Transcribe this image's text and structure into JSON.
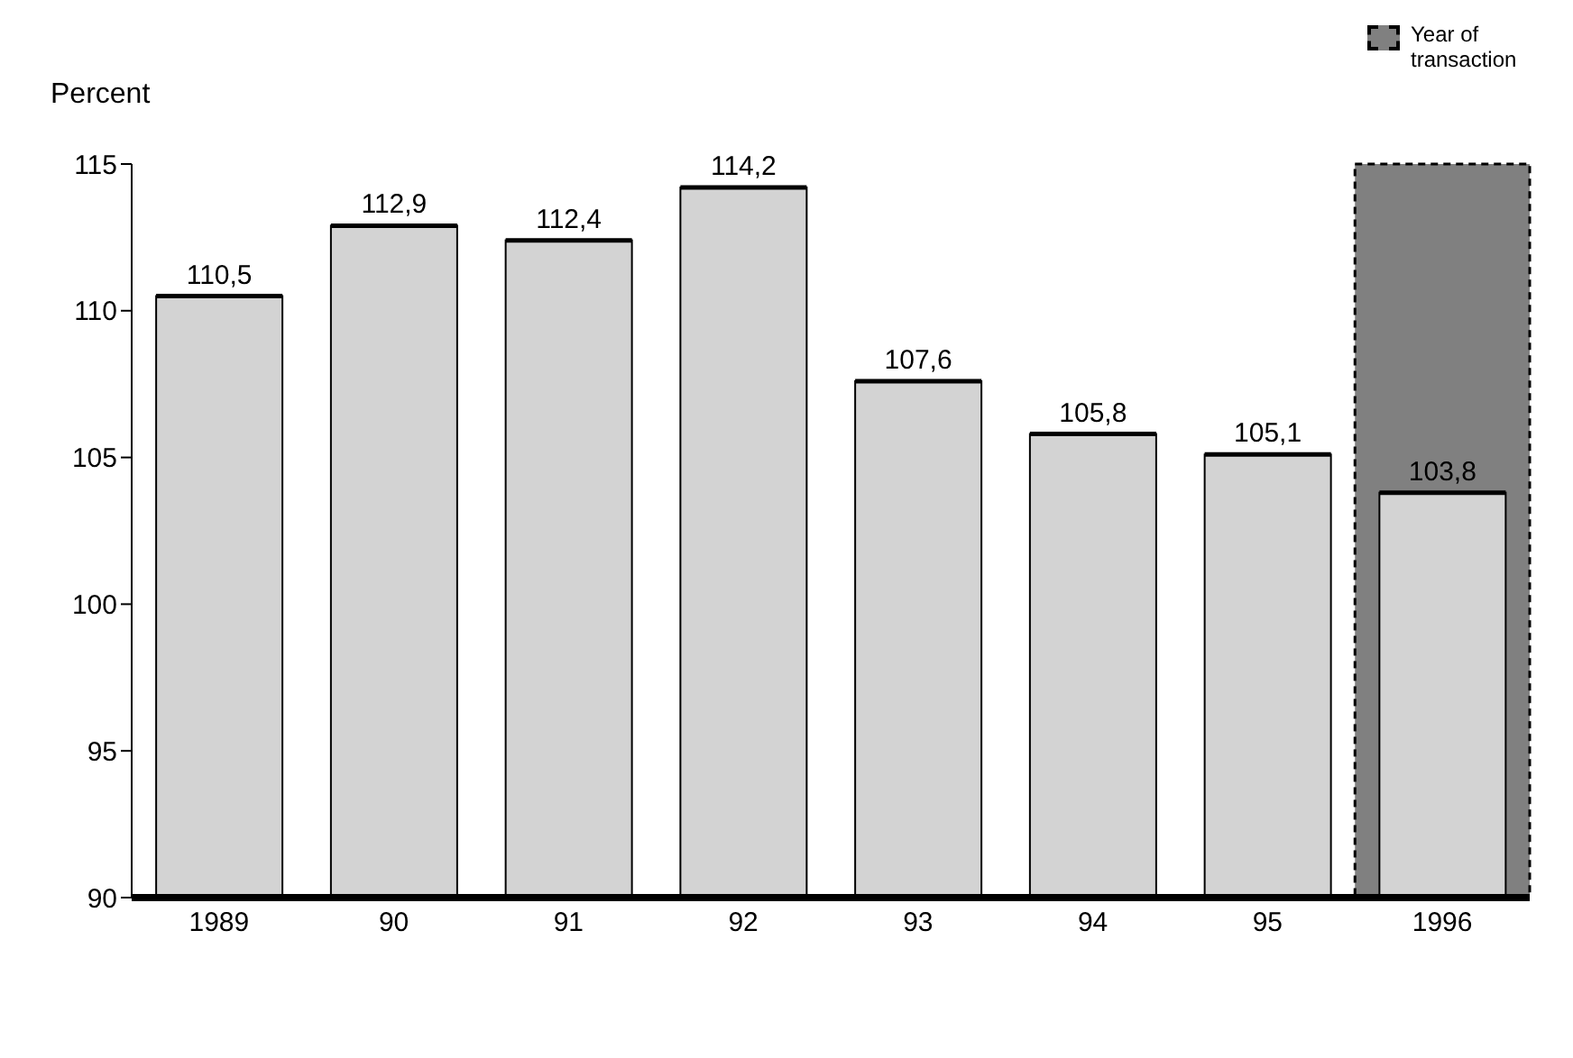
{
  "chart_data": {
    "type": "bar",
    "ylabel": "Percent",
    "categories": [
      "1989",
      "90",
      "91",
      "92",
      "93",
      "94",
      "95",
      "1996"
    ],
    "values": [
      110.5,
      112.9,
      112.4,
      114.2,
      107.6,
      105.8,
      105.1,
      103.8
    ],
    "value_labels": [
      "110,5",
      "112,9",
      "112,4",
      "114,2",
      "107,6",
      "105,8",
      "105,1",
      "103,8"
    ],
    "color": "#d3d3d3",
    "ylim": [
      90,
      115
    ],
    "yticks": [
      90,
      95,
      100,
      105,
      110,
      115
    ],
    "grid": false,
    "bands": [
      {
        "axis": "x",
        "from": "1996",
        "to": "1996",
        "label": "Year of transaction",
        "color": "#808080"
      }
    ]
  }
}
